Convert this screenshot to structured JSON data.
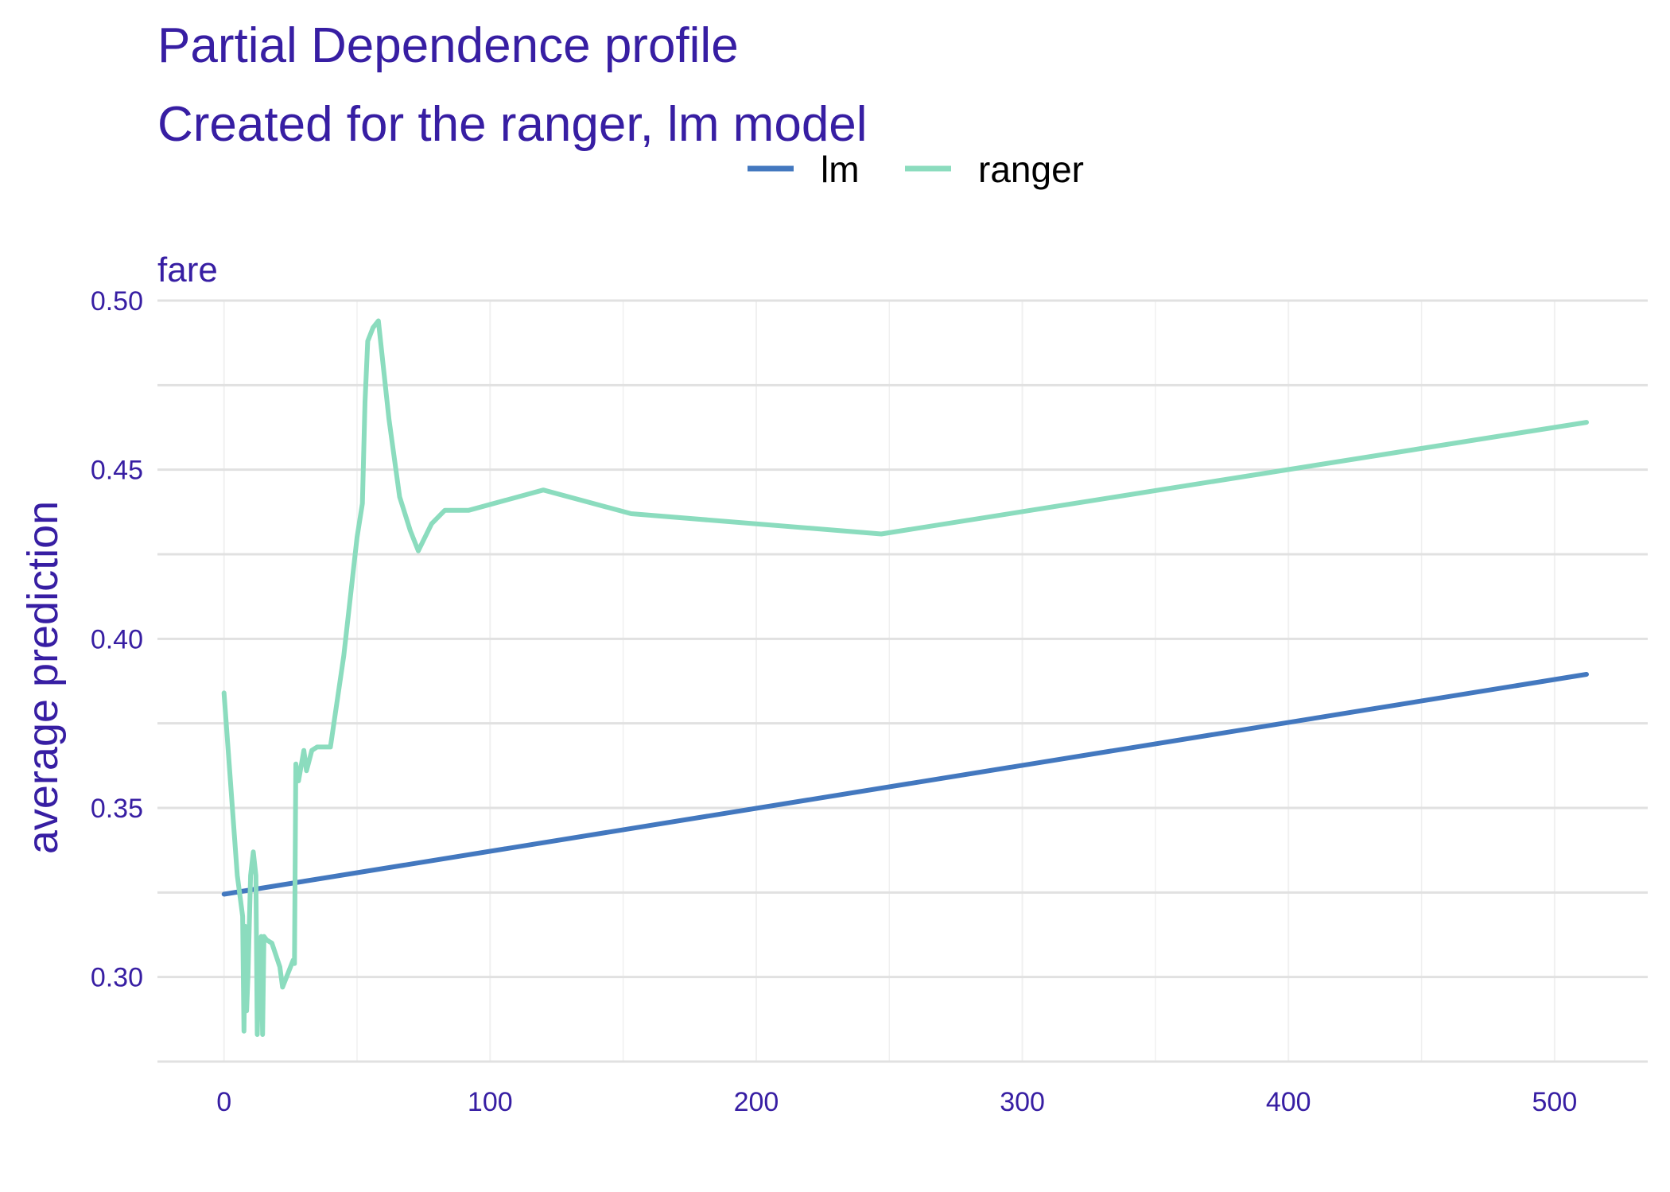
{
  "chart_data": {
    "type": "line",
    "title": "Partial Dependence profile",
    "subtitle": "Created for the ranger, lm model",
    "facet_label": "fare",
    "xlabel": "",
    "ylabel": "average prediction",
    "xlim": [
      -25,
      535
    ],
    "ylim": [
      0.275,
      0.5
    ],
    "x_ticks": [
      0,
      100,
      200,
      300,
      400,
      500
    ],
    "y_ticks": [
      0.3,
      0.35,
      0.4,
      0.45,
      0.5
    ],
    "y_tick_labels": [
      "0.30",
      "0.35",
      "0.40",
      "0.45",
      "0.50"
    ],
    "grid": true,
    "legend_position": "top",
    "series": [
      {
        "name": "lm",
        "color": "#4378bf",
        "x": [
          0,
          512
        ],
        "y": [
          0.3245,
          0.3895
        ]
      },
      {
        "name": "ranger",
        "color": "#8bdcbe",
        "x": [
          0,
          5,
          7,
          7.5,
          8,
          8.5,
          9,
          10,
          11,
          12,
          12.5,
          13,
          13.5,
          14,
          14.5,
          15,
          16,
          18,
          21,
          22,
          26,
          26.5,
          27,
          28,
          30,
          31,
          33,
          35,
          39,
          40,
          45,
          50,
          52,
          53,
          54,
          56,
          58,
          62,
          66,
          70,
          73,
          78,
          83,
          92,
          120,
          153,
          247,
          512
        ],
        "y": [
          0.384,
          0.33,
          0.318,
          0.284,
          0.315,
          0.29,
          0.3,
          0.33,
          0.337,
          0.33,
          0.283,
          0.3,
          0.29,
          0.312,
          0.283,
          0.312,
          0.311,
          0.31,
          0.303,
          0.297,
          0.305,
          0.304,
          0.363,
          0.358,
          0.367,
          0.361,
          0.367,
          0.368,
          0.368,
          0.368,
          0.395,
          0.43,
          0.44,
          0.47,
          0.488,
          0.492,
          0.494,
          0.465,
          0.442,
          0.432,
          0.426,
          0.434,
          0.438,
          0.438,
          0.444,
          0.437,
          0.431,
          0.464
        ]
      }
    ]
  }
}
